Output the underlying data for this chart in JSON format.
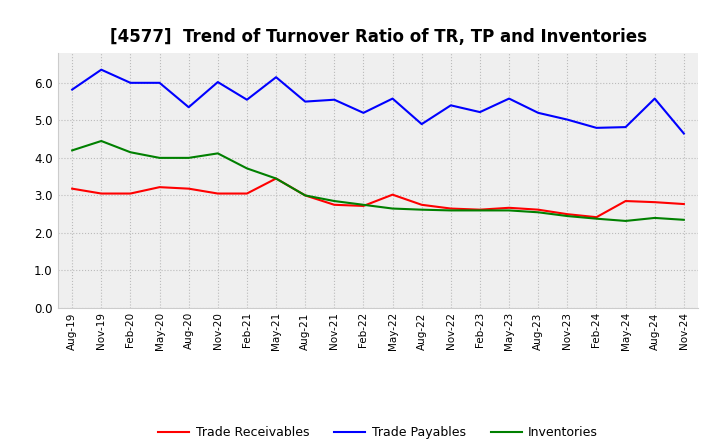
{
  "title": "[4577]  Trend of Turnover Ratio of TR, TP and Inventories",
  "labels": [
    "Aug-19",
    "Nov-19",
    "Feb-20",
    "May-20",
    "Aug-20",
    "Nov-20",
    "Feb-21",
    "May-21",
    "Aug-21",
    "Nov-21",
    "Feb-22",
    "May-22",
    "Aug-22",
    "Nov-22",
    "Feb-23",
    "May-23",
    "Aug-23",
    "Nov-23",
    "Feb-24",
    "May-24",
    "Aug-24",
    "Nov-24"
  ],
  "trade_receivables": [
    3.18,
    3.05,
    3.05,
    3.22,
    3.18,
    3.05,
    3.05,
    3.45,
    3.0,
    2.75,
    2.72,
    3.02,
    2.75,
    2.65,
    2.62,
    2.67,
    2.62,
    2.5,
    2.42,
    2.85,
    2.82,
    2.77
  ],
  "trade_payables": [
    5.82,
    6.35,
    6.0,
    6.0,
    5.35,
    6.02,
    5.55,
    6.15,
    5.5,
    5.55,
    5.2,
    5.58,
    4.9,
    5.4,
    5.22,
    5.58,
    5.2,
    5.02,
    4.8,
    4.82,
    5.58,
    4.65
  ],
  "inventories": [
    4.2,
    4.45,
    4.15,
    4.0,
    4.0,
    4.12,
    3.72,
    3.45,
    3.0,
    2.85,
    2.75,
    2.65,
    2.62,
    2.6,
    2.6,
    2.6,
    2.55,
    2.45,
    2.38,
    2.32,
    2.4,
    2.35
  ],
  "colors": {
    "trade_receivables": "#FF0000",
    "trade_payables": "#0000FF",
    "inventories": "#008000"
  },
  "ylim": [
    0.0,
    6.8
  ],
  "yticks": [
    0.0,
    1.0,
    2.0,
    3.0,
    4.0,
    5.0,
    6.0
  ],
  "background_color": "#FFFFFF",
  "plot_bg_color": "#EFEFEF",
  "grid_color": "#BBBBBB",
  "title_fontsize": 12,
  "legend_labels": [
    "Trade Receivables",
    "Trade Payables",
    "Inventories"
  ]
}
